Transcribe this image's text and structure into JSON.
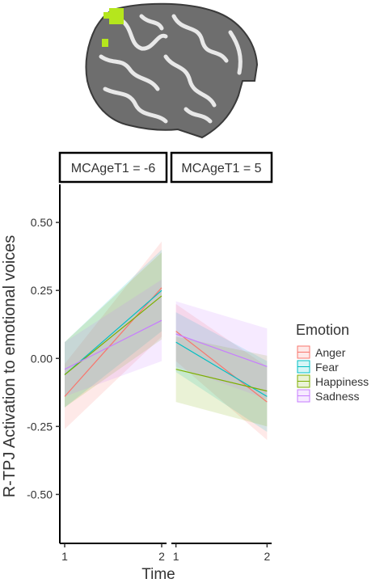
{
  "chart_data": {
    "type": "line",
    "facet_variable": "MCAgeT1",
    "facets": [
      {
        "label": "MCAgeT1 = -6",
        "series": [
          {
            "name": "Anger",
            "x": [
              1,
              2
            ],
            "y": [
              -0.14,
              0.26
            ],
            "lower": [
              -0.26,
              0.08
            ],
            "upper": [
              -0.02,
              0.43
            ]
          },
          {
            "name": "Fear",
            "x": [
              1,
              2
            ],
            "y": [
              -0.06,
              0.25
            ],
            "lower": [
              -0.18,
              0.1
            ],
            "upper": [
              0.06,
              0.4
            ]
          },
          {
            "name": "Happiness",
            "x": [
              1,
              2
            ],
            "y": [
              -0.06,
              0.23
            ],
            "lower": [
              -0.18,
              0.07
            ],
            "upper": [
              0.06,
              0.39
            ]
          },
          {
            "name": "Sadness",
            "x": [
              1,
              2
            ],
            "y": [
              -0.04,
              0.14
            ],
            "lower": [
              -0.14,
              -0.01
            ],
            "upper": [
              0.06,
              0.29
            ]
          }
        ]
      },
      {
        "label": "MCAgeT1 = 5",
        "series": [
          {
            "name": "Anger",
            "x": [
              1,
              2
            ],
            "y": [
              0.1,
              -0.16
            ],
            "lower": [
              -0.01,
              -0.3
            ],
            "upper": [
              0.2,
              -0.03
            ]
          },
          {
            "name": "Fear",
            "x": [
              1,
              2
            ],
            "y": [
              0.06,
              -0.14
            ],
            "lower": [
              -0.05,
              -0.27
            ],
            "upper": [
              0.17,
              -0.01
            ]
          },
          {
            "name": "Happiness",
            "x": [
              1,
              2
            ],
            "y": [
              -0.04,
              -0.12
            ],
            "lower": [
              -0.16,
              -0.25
            ],
            "upper": [
              0.08,
              0.01
            ]
          },
          {
            "name": "Sadness",
            "x": [
              1,
              2
            ],
            "y": [
              0.09,
              -0.03
            ],
            "lower": [
              -0.03,
              -0.15
            ],
            "upper": [
              0.21,
              0.11
            ]
          }
        ]
      }
    ],
    "xlabel": "Time",
    "ylabel": "R-TPJ Activation to emotional voices",
    "x_ticks": [
      "1",
      "2"
    ],
    "y_ticks": [
      0.5,
      0.25,
      0.0,
      -0.25,
      -0.5
    ],
    "y_tick_labels": [
      "0.50",
      "0.25",
      "0.00",
      "-0.25",
      "-0.50"
    ],
    "xlim": [
      0.95,
      2.05
    ],
    "ylim": [
      -0.68,
      0.64
    ],
    "grid": false,
    "legend": {
      "title": "Emotion",
      "position": "right",
      "entries": [
        "Anger",
        "Fear",
        "Happiness",
        "Sadness"
      ]
    },
    "colors": {
      "Anger": "#F8766D",
      "Fear": "#00BFC4",
      "Happiness": "#7CAE00",
      "Sadness": "#C77CFF"
    }
  },
  "brain_image": {
    "icon": "brain-sagittal-icon",
    "highlight_color": "#b5e61d"
  }
}
